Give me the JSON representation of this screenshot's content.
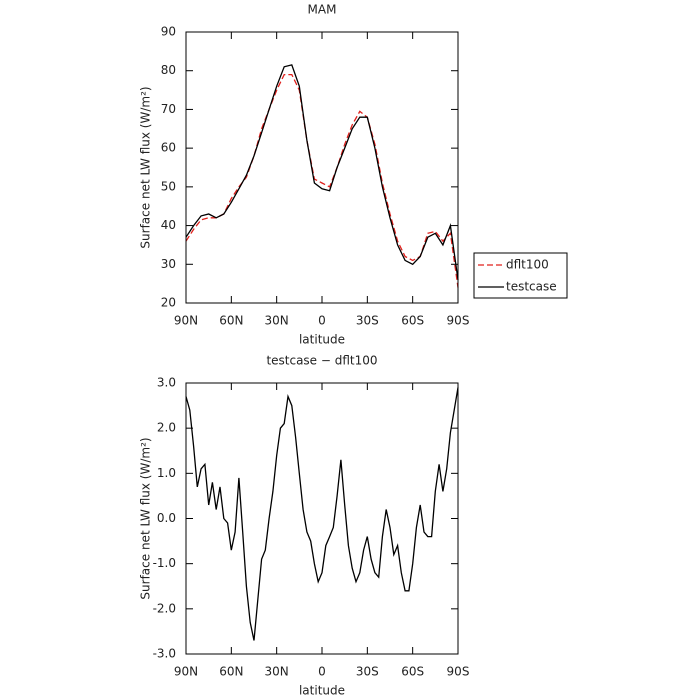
{
  "chart_data": [
    {
      "type": "line",
      "title": "MAM",
      "xlabel": "latitude",
      "ylabel": "Surface net LW flux (W/m²)",
      "x": [
        90,
        85,
        80,
        75,
        70,
        65,
        60,
        55,
        50,
        45,
        40,
        35,
        30,
        25,
        20,
        15,
        10,
        5,
        0,
        -5,
        -10,
        -15,
        -20,
        -25,
        -30,
        -35,
        -40,
        -45,
        -50,
        -55,
        -60,
        -65,
        -70,
        -75,
        -80,
        -85,
        -90
      ],
      "series": [
        {
          "name": "dflt100",
          "color": "#e0201c",
          "linestyle": "dashed",
          "values": [
            36,
            39,
            41.5,
            42,
            42,
            43,
            47,
            50,
            52.5,
            58,
            65,
            70,
            75,
            79,
            79,
            75,
            62,
            52,
            51,
            50,
            55,
            61,
            66,
            69.5,
            68,
            61,
            51,
            43,
            36,
            32,
            31,
            32,
            38,
            38.5,
            36,
            38,
            24
          ]
        },
        {
          "name": "testcase",
          "color": "#000000",
          "linestyle": "solid",
          "values": [
            37,
            40,
            42.5,
            43,
            42,
            43,
            46,
            49.5,
            53,
            58,
            64,
            70,
            76,
            81,
            81.5,
            76,
            62,
            51,
            49.5,
            49,
            55,
            60,
            65,
            68,
            68,
            60,
            50,
            42,
            35,
            31,
            30,
            32,
            37,
            38,
            35,
            40,
            26
          ]
        }
      ],
      "xlim": [
        90,
        -90
      ],
      "xticks": [
        {
          "value": 90,
          "label": "90N"
        },
        {
          "value": 60,
          "label": "60N"
        },
        {
          "value": 30,
          "label": "30N"
        },
        0,
        {
          "value": -30,
          "label": "30S"
        },
        {
          "value": -60,
          "label": "60S"
        },
        {
          "value": -90,
          "label": "90S"
        }
      ],
      "ylim": [
        20,
        90
      ],
      "yticks": [
        20,
        30,
        40,
        50,
        60,
        70,
        80,
        90
      ],
      "legend": "right"
    },
    {
      "type": "line",
      "title": "testcase − dflt100",
      "xlabel": "latitude",
      "ylabel": "Surface net LW flux (W/m²)",
      "x": [
        90,
        87.5,
        85,
        82.5,
        80,
        77.5,
        75,
        72.5,
        70,
        67.5,
        65,
        62.5,
        60,
        57.5,
        55,
        52.5,
        50,
        47.5,
        45,
        42.5,
        40,
        37.5,
        35,
        32.5,
        30,
        27.5,
        25,
        22.5,
        20,
        17.5,
        15,
        12.5,
        10,
        7.5,
        5,
        2.5,
        0,
        -2.5,
        -5,
        -7.5,
        -10,
        -12.5,
        -15,
        -17.5,
        -20,
        -22.5,
        -25,
        -27.5,
        -30,
        -32.5,
        -35,
        -37.5,
        -40,
        -42.5,
        -45,
        -47.5,
        -50,
        -52.5,
        -55,
        -57.5,
        -60,
        -62.5,
        -65,
        -67.5,
        -70,
        -72.5,
        -75,
        -77.5,
        -80,
        -82.5,
        -85,
        -87.5,
        -90
      ],
      "color": "#000000",
      "values": [
        2.7,
        2.4,
        1.6,
        0.7,
        1.1,
        1.2,
        0.3,
        0.8,
        0.2,
        0.7,
        0.0,
        -0.1,
        -0.7,
        -0.3,
        0.9,
        -0.3,
        -1.5,
        -2.3,
        -2.7,
        -1.8,
        -0.9,
        -0.7,
        0.0,
        0.6,
        1.4,
        2.0,
        2.1,
        2.7,
        2.5,
        1.8,
        1.0,
        0.2,
        -0.3,
        -0.5,
        -1.0,
        -1.4,
        -1.2,
        -0.6,
        -0.4,
        -0.2,
        0.5,
        1.3,
        0.3,
        -0.6,
        -1.1,
        -1.4,
        -1.2,
        -0.7,
        -0.4,
        -0.9,
        -1.2,
        -1.3,
        -0.4,
        0.2,
        -0.2,
        -0.8,
        -0.6,
        -1.2,
        -1.6,
        -1.6,
        -1.0,
        -0.2,
        0.3,
        -0.3,
        -0.4,
        -0.4,
        0.6,
        1.2,
        0.6,
        1.1,
        1.9,
        2.4,
        2.9
      ],
      "xlim": [
        90,
        -90
      ],
      "xticks": [
        {
          "value": 90,
          "label": "90N"
        },
        {
          "value": 60,
          "label": "60N"
        },
        {
          "value": 30,
          "label": "30N"
        },
        0,
        {
          "value": -30,
          "label": "30S"
        },
        {
          "value": -60,
          "label": "60S"
        },
        {
          "value": -90,
          "label": "90S"
        }
      ],
      "ylim": [
        -3,
        3
      ],
      "yticks": [
        {
          "value": -3,
          "label": "-3.0"
        },
        {
          "value": -2,
          "label": "-2.0"
        },
        {
          "value": -1,
          "label": "-1.0"
        },
        {
          "value": 0,
          "label": "0.0"
        },
        {
          "value": 1,
          "label": "1.0"
        },
        {
          "value": 2,
          "label": "2.0"
        },
        {
          "value": 3,
          "label": "3.0"
        }
      ]
    }
  ]
}
